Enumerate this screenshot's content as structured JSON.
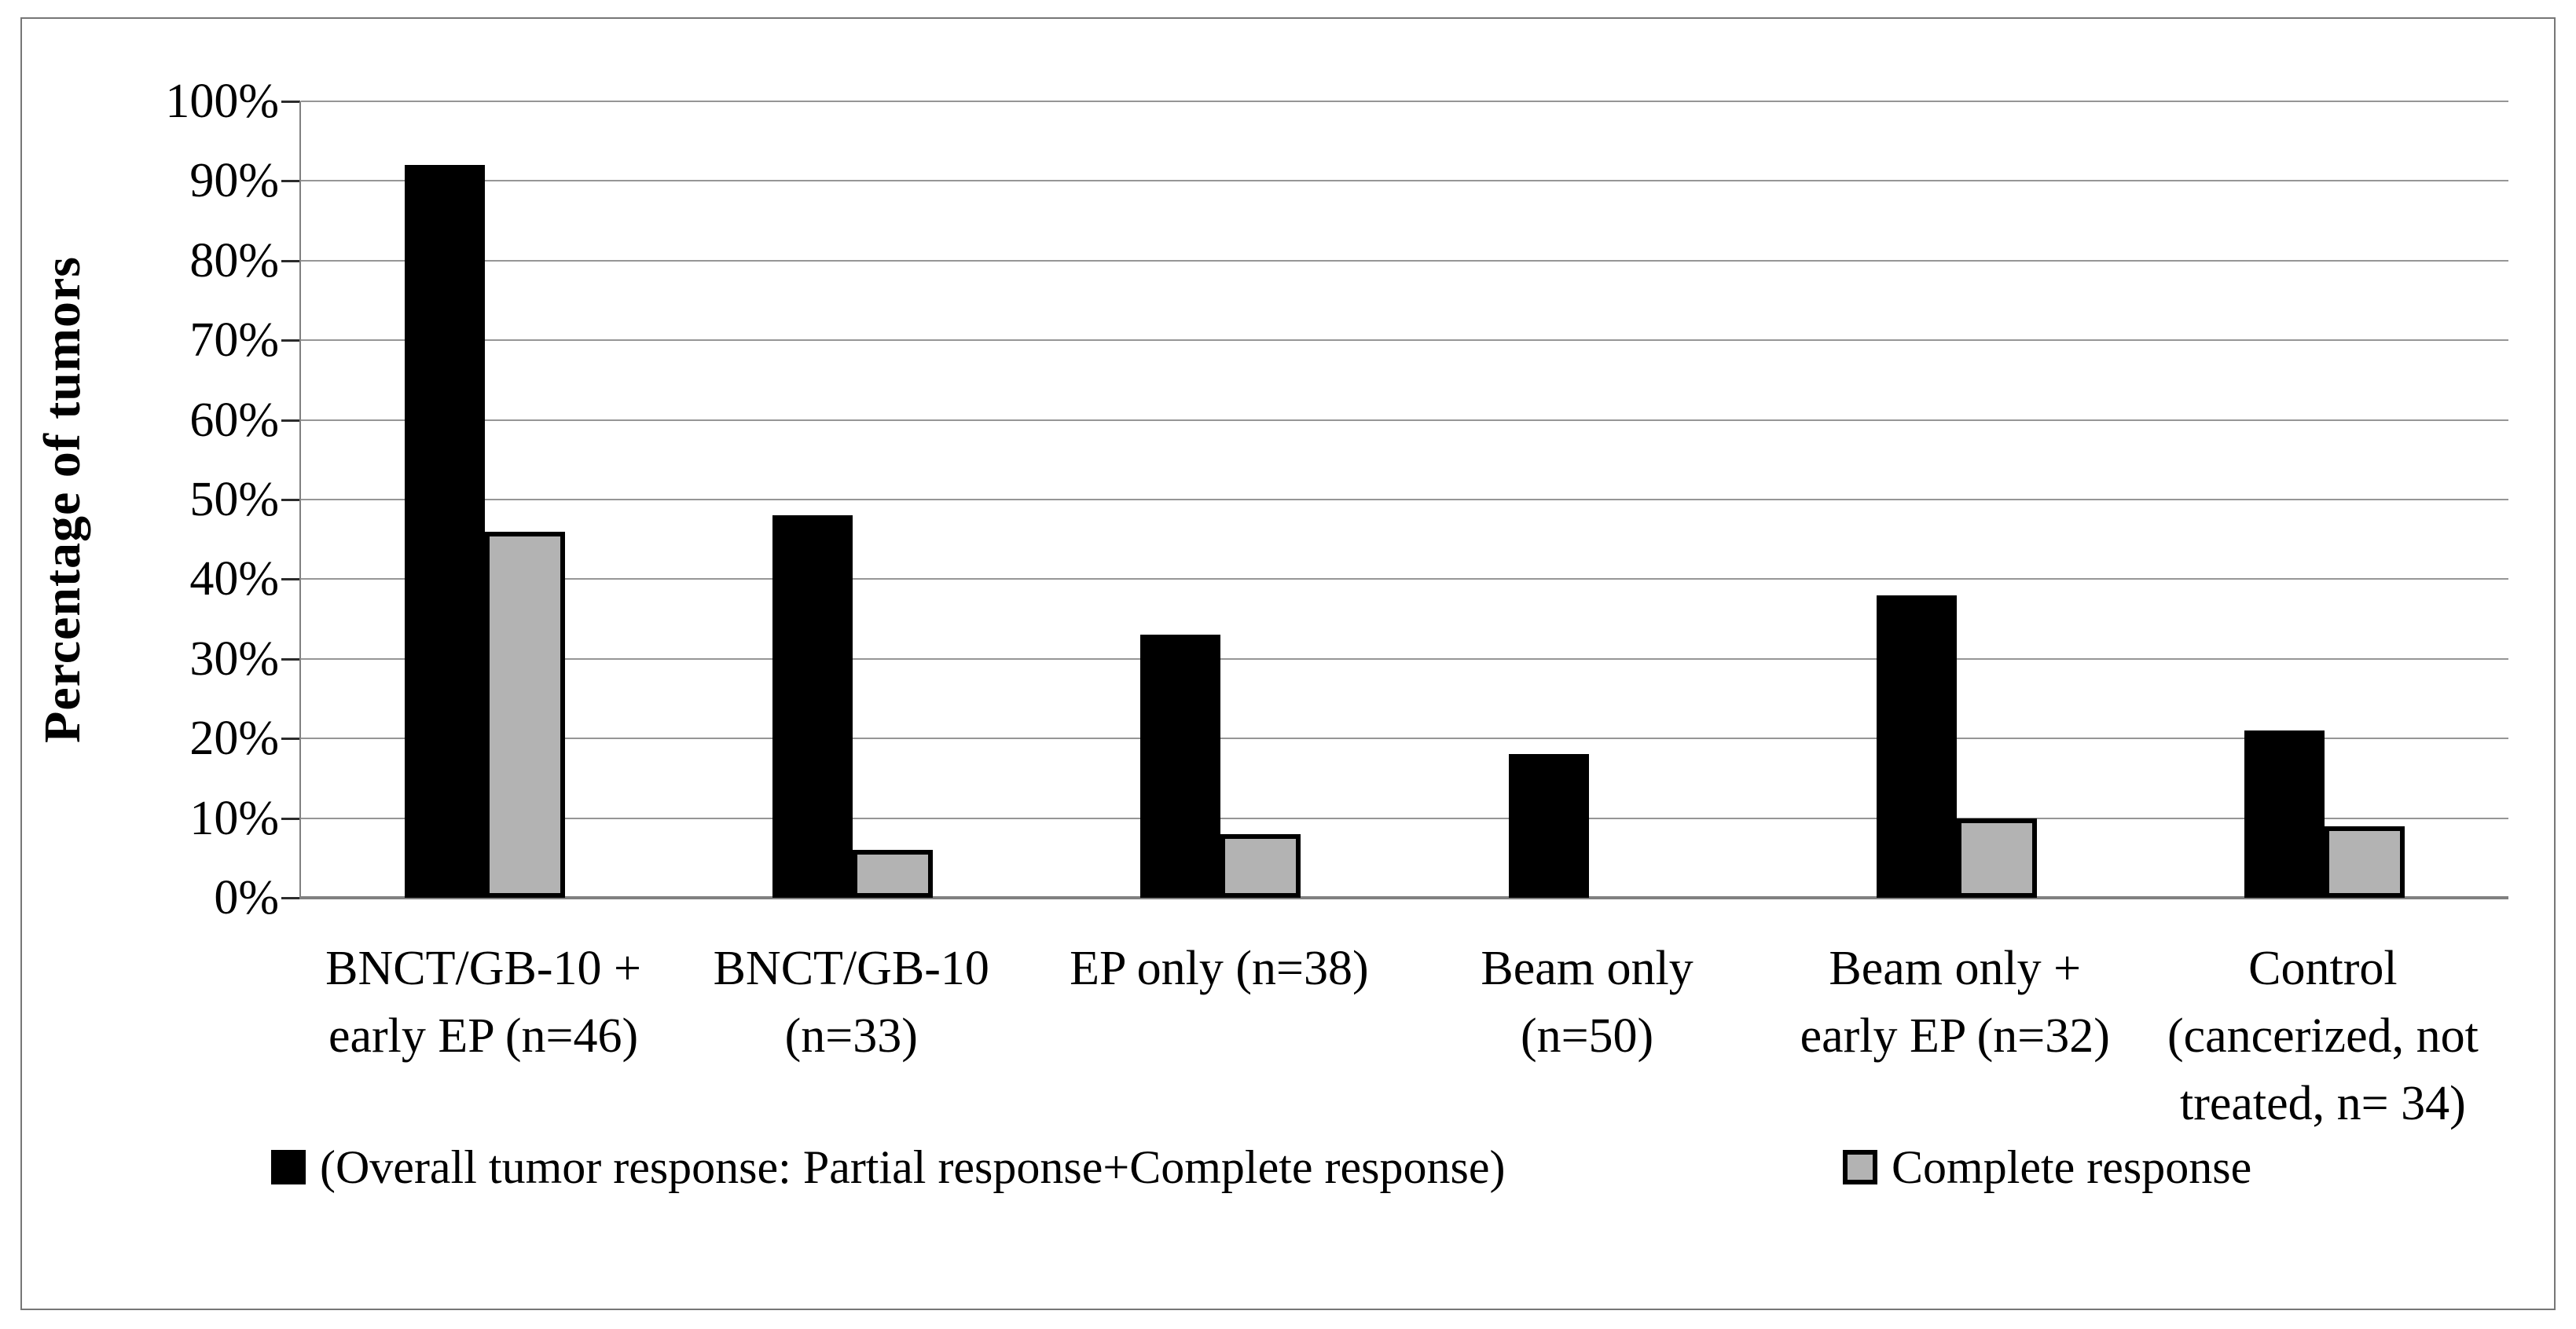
{
  "figure": {
    "background": "#ffffff",
    "frame_border_color": "#767676"
  },
  "chart_data": {
    "type": "bar",
    "title": "",
    "xlabel": "",
    "ylabel": "Percentage of tumors",
    "ylim": [
      0,
      100
    ],
    "ytick_step": 10,
    "ytick_suffix": "%",
    "grid": "horizontal-gridlines-every-10-percent",
    "gridline_color": "#969696",
    "axis_color": "#808080",
    "legend_position": "bottom",
    "categories": [
      "BNCT/GB-10 +\nearly EP (n=46)",
      "BNCT/GB-10\n(n=33)",
      "EP only (n=38)",
      "Beam only\n(n=50)",
      "Beam only +\nearly EP (n=32)",
      "Control\n(cancerized, not\ntreated, n= 34)"
    ],
    "series": [
      {
        "name": "(Overall tumor response: Partial response+Complete response)",
        "color": "#000000",
        "border_color": "#000000",
        "values": [
          92,
          48,
          33,
          18,
          38,
          21
        ]
      },
      {
        "name": "Complete response",
        "color": "#b3b3b3",
        "border_color": "#000000",
        "values": [
          46,
          6,
          8,
          0,
          10,
          9
        ]
      }
    ]
  }
}
